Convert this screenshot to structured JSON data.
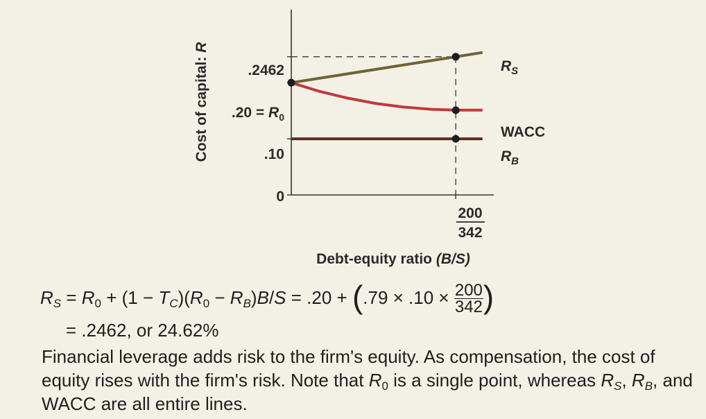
{
  "chart_data": {
    "type": "line",
    "xlabel": "Debt-equity ratio (B/S)",
    "ylabel": "Cost of capital: R",
    "x_tick_label": {
      "numerator": "200",
      "denominator": "342"
    },
    "x_point": 0.5848,
    "y_ticks": [
      {
        "value": 0,
        "label": "0"
      },
      {
        "value": 0.1,
        "label": ".10"
      },
      {
        "value": 0.2,
        "label": ".20 = R0"
      },
      {
        "value": 0.2462,
        "label": ".2462"
      }
    ],
    "series": [
      {
        "name": "RS",
        "color": "#6e6434",
        "x": [
          0,
          0.5848,
          0.68
        ],
        "y": [
          0.2,
          0.2462,
          0.2537
        ]
      },
      {
        "name": "WACC",
        "color": "#c0393f",
        "x": [
          0,
          0.1,
          0.2,
          0.3,
          0.4,
          0.5,
          0.5848,
          0.68
        ],
        "y": [
          0.2,
          0.1845,
          0.1725,
          0.163,
          0.1565,
          0.1525,
          0.151,
          0.151
        ]
      },
      {
        "name": "RB",
        "color": "#5e2a1e",
        "x": [
          0,
          0.5848,
          0.68
        ],
        "y": [
          0.1,
          0.1,
          0.1
        ]
      }
    ],
    "xlim": [
      0,
      0.72
    ],
    "ylim": [
      0,
      0.33
    ],
    "grid": false,
    "legend": "none"
  },
  "equation": {
    "part1": "= .20 +",
    "part2": ".79 × .10 ×",
    "frac_num": "200",
    "frac_den": "342",
    "line2": "= .2462, or 24.62%"
  },
  "note": {
    "text1": "Financial leverage adds risk to the firm",
    "text2": "s equity. As compensation, the cost of equity rises with the firm",
    "text3": "s risk. Note that ",
    "text4": " is a single point, whereas ",
    "text5": ", and WACC are all entire lines."
  }
}
